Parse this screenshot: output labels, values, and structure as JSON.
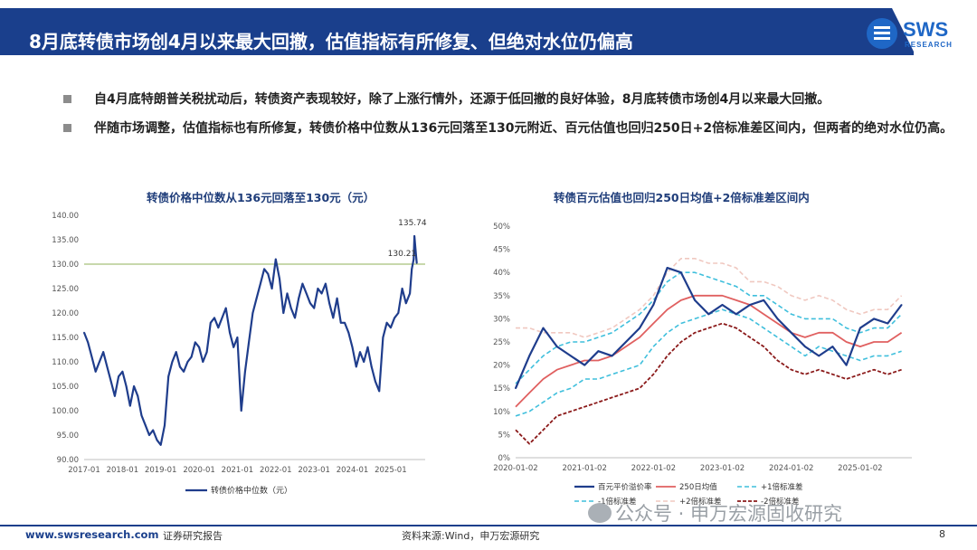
{
  "header": {
    "title": "8月底转债市场创4月以来最大回撤，估值指标有所修复、但绝对水位仍偏高"
  },
  "logo": {
    "text": "SWS",
    "sub": "RESEARCH",
    "color": "#1f67c6"
  },
  "bullets": [
    "自4月底特朗普关税扰动后，转债资产表现较好，除了上涨行情外，还源于低回撤的良好体验，8月底转债市场创4月以来最大回撤。",
    "伴随市场调整，估值指标也有所修复，转债价格中位数从136元回落至130元附近、百元估值也回归250日+2倍标准差区间内，但两者的绝对水位仍高。"
  ],
  "footer": {
    "url": "www.swsresearch.com",
    "report": "证券研究报告",
    "source": "资料来源:Wind，申万宏源研究",
    "page": "8"
  },
  "watermark": {
    "text": "公众号 · 申万宏源固收研究"
  },
  "chart_data": [
    {
      "type": "line",
      "title": "转债价格中位数从136元回落至130元（元）",
      "x_ticks": [
        "2017-01",
        "2018-01",
        "2019-01",
        "2020-01",
        "2021-01",
        "2022-01",
        "2023-01",
        "2024-01",
        "2025-01"
      ],
      "y_ticks": [
        "90.00",
        "95.00",
        "100.00",
        "105.00",
        "110.00",
        "115.00",
        "120.00",
        "125.00",
        "130.00",
        "135.00",
        "140.00"
      ],
      "ylim": [
        90,
        140
      ],
      "reference_line": 130,
      "annotations": [
        {
          "label": "135.74",
          "x": 2025.62,
          "y": 135.74
        },
        {
          "label": "130.21",
          "x": 2025.68,
          "y": 130.21
        }
      ],
      "legend": "bottom",
      "colors": {
        "series": "#1f3d8c",
        "reference": "#a8c07a"
      },
      "series": [
        {
          "name": "转债价格中位数（元）",
          "x": [
            2017.0,
            2017.1,
            2017.2,
            2017.3,
            2017.4,
            2017.5,
            2017.6,
            2017.7,
            2017.8,
            2017.9,
            2018.0,
            2018.1,
            2018.2,
            2018.3,
            2018.4,
            2018.5,
            2018.6,
            2018.7,
            2018.8,
            2018.9,
            2019.0,
            2019.1,
            2019.2,
            2019.3,
            2019.4,
            2019.5,
            2019.6,
            2019.7,
            2019.8,
            2019.9,
            2020.0,
            2020.1,
            2020.2,
            2020.3,
            2020.4,
            2020.5,
            2020.6,
            2020.7,
            2020.8,
            2020.9,
            2021.0,
            2021.1,
            2021.2,
            2021.3,
            2021.4,
            2021.5,
            2021.6,
            2021.7,
            2021.8,
            2021.9,
            2022.0,
            2022.1,
            2022.2,
            2022.3,
            2022.4,
            2022.5,
            2022.6,
            2022.7,
            2022.8,
            2022.9,
            2023.0,
            2023.1,
            2023.2,
            2023.3,
            2023.4,
            2023.5,
            2023.6,
            2023.7,
            2023.8,
            2023.9,
            2024.0,
            2024.1,
            2024.2,
            2024.3,
            2024.4,
            2024.5,
            2024.6,
            2024.7,
            2024.8,
            2024.9,
            2025.0,
            2025.1,
            2025.2,
            2025.3,
            2025.4,
            2025.5,
            2025.55,
            2025.6,
            2025.62,
            2025.66,
            2025.68
          ],
          "values": [
            116,
            114,
            111,
            108,
            110,
            112,
            109,
            106,
            103,
            107,
            108,
            105,
            101,
            105,
            103,
            99,
            97,
            95,
            96,
            94,
            93,
            97,
            107,
            110,
            112,
            109,
            108,
            110,
            111,
            114,
            113,
            110,
            112,
            118,
            119,
            117,
            119,
            121,
            116,
            113,
            115,
            100,
            108,
            114,
            120,
            123,
            126,
            129,
            128,
            125,
            131,
            127,
            120,
            124,
            121,
            119,
            123,
            126,
            124,
            122,
            121,
            125,
            124,
            126,
            122,
            119,
            123,
            118,
            118,
            116,
            113,
            109,
            112,
            110,
            113,
            109,
            106,
            104,
            115,
            118,
            117,
            119,
            120,
            125,
            122,
            124,
            129,
            131,
            135.74,
            132,
            130.21
          ]
        }
      ]
    },
    {
      "type": "line",
      "title": "转债百元估值也回归250日均值+2倍标准差区间内",
      "x_ticks": [
        "2020-01-02",
        "2021-01-02",
        "2022-01-02",
        "2023-01-02",
        "2024-01-02",
        "2025-01-02"
      ],
      "y_ticks": [
        "0%",
        "5%",
        "10%",
        "15%",
        "20%",
        "25%",
        "30%",
        "35%",
        "40%",
        "45%",
        "50%"
      ],
      "ylim": [
        0,
        50
      ],
      "legend": "bottom",
      "x": [
        2020.0,
        2020.2,
        2020.4,
        2020.6,
        2020.8,
        2021.0,
        2021.2,
        2021.4,
        2021.6,
        2021.8,
        2022.0,
        2022.2,
        2022.4,
        2022.6,
        2022.8,
        2023.0,
        2023.2,
        2023.4,
        2023.6,
        2023.8,
        2024.0,
        2024.2,
        2024.4,
        2024.6,
        2024.8,
        2025.0,
        2025.2,
        2025.4,
        2025.6
      ],
      "series": [
        {
          "name": "百元平价溢价率",
          "color": "#1f3d8c",
          "values": [
            15,
            22,
            28,
            24,
            22,
            20,
            23,
            22,
            25,
            28,
            33,
            41,
            40,
            34,
            31,
            33,
            31,
            33,
            34,
            30,
            27,
            24,
            22,
            24,
            20,
            28,
            30,
            29,
            33
          ]
        },
        {
          "name": "250日均值",
          "color": "#e06060",
          "values": [
            11,
            14,
            17,
            19,
            20,
            21,
            21,
            22,
            24,
            26,
            29,
            32,
            34,
            35,
            35,
            35,
            34,
            33,
            31,
            29,
            27,
            26,
            27,
            27,
            25,
            24,
            25,
            25,
            27
          ]
        },
        {
          "name": "+1倍标准差",
          "color": "#3fbfdc",
          "values": [
            16,
            19,
            22,
            24,
            25,
            25,
            26,
            27,
            29,
            31,
            34,
            38,
            40,
            40,
            39,
            38,
            37,
            35,
            35,
            33,
            31,
            30,
            30,
            30,
            28,
            27,
            28,
            28,
            31
          ]
        },
        {
          "name": "-1倍标准差",
          "color": "#3fbfdc",
          "values": [
            9,
            10,
            12,
            14,
            15,
            17,
            17,
            18,
            19,
            20,
            24,
            27,
            29,
            30,
            31,
            32,
            31,
            30,
            28,
            26,
            24,
            22,
            24,
            23,
            22,
            21,
            22,
            22,
            23
          ]
        },
        {
          "name": "+2倍标准差",
          "color": "#f0c8c0",
          "values": [
            28,
            28,
            27,
            27,
            27,
            26,
            27,
            28,
            30,
            32,
            35,
            40,
            43,
            43,
            42,
            42,
            41,
            38,
            38,
            37,
            35,
            34,
            35,
            34,
            32,
            31,
            32,
            32,
            35
          ]
        },
        {
          "name": "-2倍标准差",
          "color": "#8b1a1a",
          "values": [
            6,
            3,
            6,
            9,
            10,
            11,
            12,
            13,
            14,
            15,
            18,
            22,
            25,
            27,
            28,
            29,
            28,
            26,
            24,
            21,
            19,
            18,
            19,
            18,
            17,
            18,
            19,
            18,
            19
          ]
        }
      ]
    }
  ]
}
